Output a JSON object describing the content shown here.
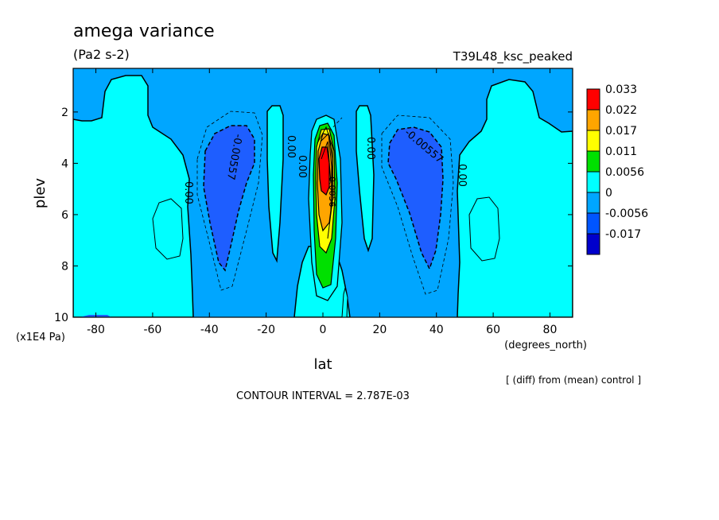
{
  "chart_data": {
    "type": "heatmap",
    "title": "amega variance",
    "units": "(Pa2 s-2)",
    "experiment": "T39L48_ksc_peaked",
    "xlabel": "lat",
    "x_units": "(degrees_north)",
    "ylabel": "plev",
    "y_units": "(x1E4 Pa)",
    "xlim": [
      -88,
      88
    ],
    "ylim": [
      0.3,
      10
    ],
    "y_reversed": true,
    "x_ticks": [
      -80,
      -60,
      -40,
      -20,
      0,
      20,
      40,
      60,
      80
    ],
    "y_ticks": [
      2,
      4,
      6,
      8,
      10
    ],
    "contour_interval_text": "CONTOUR INTERVAL = 2.787E-03",
    "footnote": "[ (diff) from (mean) control ]",
    "contour_labels": [
      "0.00",
      "0.00",
      "0.00",
      "0.00",
      "0.00",
      "0.00",
      "-0.00557",
      "-0.00557",
      "0.0056"
    ],
    "colorbar": {
      "levels": [
        "0.033",
        "0.022",
        "0.017",
        "0.011",
        "0.0056",
        "0",
        "-0.0056",
        "-0.017"
      ],
      "colors": [
        "#ff0000",
        "#ffa500",
        "#ffff00",
        "#00e000",
        "#00ffff",
        "#00a6ff",
        "#0055ff",
        "#0000cc"
      ]
    },
    "fill_colors": {
      "strong_negative": "#1e5eff",
      "negative": "#00a6ff",
      "near_zero": "#00ffff",
      "positive_low": "#00e000",
      "positive_mid": "#ffff00",
      "positive_high": "#ffa500",
      "positive_max": "#ff0000"
    }
  }
}
